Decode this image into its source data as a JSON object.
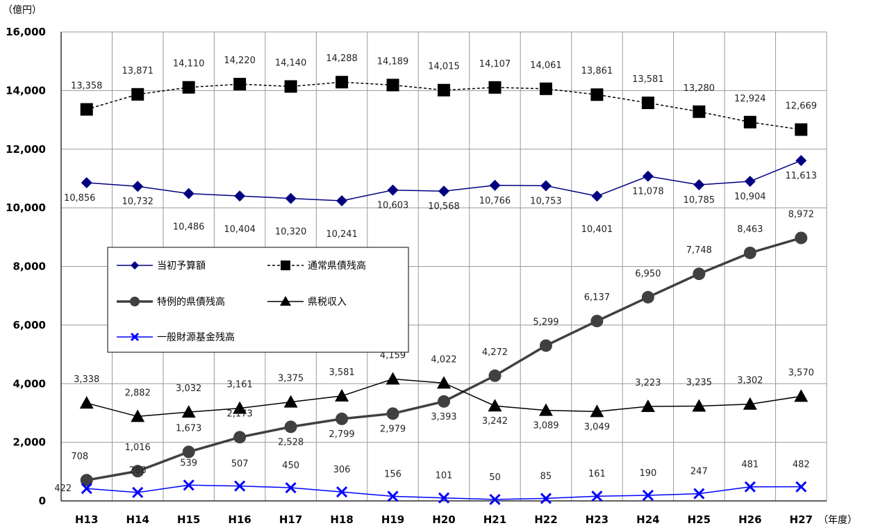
{
  "chart_data": {
    "type": "line",
    "y_unit": "（億円）",
    "x_unit": "（年度）",
    "categories": [
      "H13",
      "H14",
      "H15",
      "H16",
      "H17",
      "H18",
      "H19",
      "H20",
      "H21",
      "H22",
      "H23",
      "H24",
      "H25",
      "H26",
      "H27"
    ],
    "ylim": [
      0,
      16000
    ],
    "yticks": [
      0,
      2000,
      4000,
      6000,
      8000,
      10000,
      12000,
      14000,
      16000
    ],
    "ytick_labels": [
      "0",
      "2,000",
      "4,000",
      "6,000",
      "8,000",
      "10,000",
      "12,000",
      "14,000",
      "16,000"
    ],
    "grid": true,
    "legend_position": "center-left",
    "series": [
      {
        "name": "当初予算額",
        "color": "#000080",
        "marker": "diamond",
        "line": "solid",
        "values": [
          10856,
          10732,
          10486,
          10404,
          10320,
          10241,
          10603,
          10568,
          10766,
          10753,
          10401,
          11078,
          10785,
          10904,
          11613
        ],
        "labels": [
          "10,856",
          "10,732",
          "10,486",
          "10,404",
          "10,320",
          "10,241",
          "10,603",
          "10,568",
          "10,766",
          "10,753",
          "10,401",
          "11,078",
          "10,785",
          "10,904",
          "11,613"
        ]
      },
      {
        "name": "通常県債残高",
        "color": "#000000",
        "marker": "square",
        "line": "dashed",
        "values": [
          13358,
          13871,
          14110,
          14220,
          14140,
          14288,
          14189,
          14015,
          14107,
          14061,
          13861,
          13581,
          13280,
          12924,
          12669
        ],
        "labels": [
          "13,358",
          "13,871",
          "14,110",
          "14,220",
          "14,140",
          "14,288",
          "14,189",
          "14,015",
          "14,107",
          "14,061",
          "13,861",
          "13,581",
          "13,280",
          "12,924",
          "12,669"
        ]
      },
      {
        "name": "特例的県債残高",
        "color": "#404040",
        "marker": "circle",
        "line": "thick",
        "values": [
          708,
          1016,
          1673,
          2173,
          2528,
          2799,
          2979,
          3393,
          4272,
          5299,
          6137,
          6950,
          7748,
          8463,
          8972
        ],
        "labels": [
          "708",
          "1,016",
          "1,673",
          "2,173",
          "2,528",
          "2,799",
          "2,979",
          "3,393",
          "4,272",
          "5,299",
          "6,137",
          "6,950",
          "7,748",
          "8,463",
          "8,972"
        ]
      },
      {
        "name": "県税収入",
        "color": "#000000",
        "marker": "triangle",
        "line": "solid",
        "values": [
          3338,
          2882,
          3032,
          3161,
          3375,
          3581,
          4159,
          4022,
          3242,
          3089,
          3049,
          3223,
          3235,
          3302,
          3570
        ],
        "labels": [
          "3,338",
          "2,882",
          "3,032",
          "3,161",
          "3,375",
          "3,581",
          "4,159",
          "4,022",
          "3,242",
          "3,089",
          "3,049",
          "3,223",
          "3,235",
          "3,302",
          "3,570"
        ]
      },
      {
        "name": "一般財源基金残高",
        "color": "#0000ff",
        "marker": "x",
        "line": "solid",
        "values": [
          422,
          288,
          539,
          507,
          450,
          306,
          156,
          101,
          50,
          85,
          161,
          190,
          247,
          481,
          482
        ],
        "labels": [
          "422",
          "288",
          "539",
          "507",
          "450",
          "306",
          "156",
          "101",
          "50",
          "85",
          "161",
          "190",
          "247",
          "481",
          "482"
        ]
      }
    ]
  }
}
